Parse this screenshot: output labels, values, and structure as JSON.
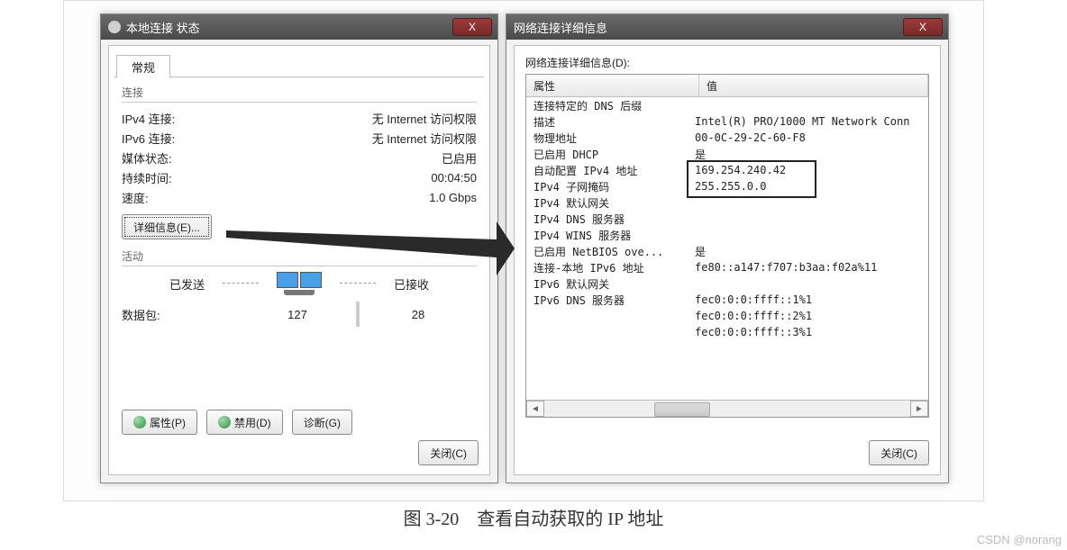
{
  "colors": {
    "window_bg": "#f2f2f2",
    "panel_bg": "#ffffff",
    "border": "#bcbcbc",
    "titlebar_top": "#6a6a6a",
    "titlebar_bot": "#4a4a4a",
    "xbtn_top": "#9a3a3a",
    "xbtn_bot": "#7a2a2a",
    "highlight_box": "#222222",
    "watermark": "#bbbbbb"
  },
  "left_window": {
    "title": "本地连接 状态",
    "tab": "常规",
    "connection_group_label": "连接",
    "rows": [
      {
        "k": "IPv4 连接:",
        "v": "无 Internet 访问权限"
      },
      {
        "k": "IPv6 连接:",
        "v": "无 Internet 访问权限"
      },
      {
        "k": "媒体状态:",
        "v": "已启用"
      },
      {
        "k": "持续时间:",
        "v": "00:04:50"
      },
      {
        "k": "速度:",
        "v": "1.0 Gbps"
      }
    ],
    "details_button": "详细信息(E)...",
    "activity_group_label": "活动",
    "sent_label": "已发送",
    "recv_label": "已接收",
    "packets_label": "数据包:",
    "packets_sent": "127",
    "packets_recv": "28",
    "btn_properties": "属性(P)",
    "btn_disable": "禁用(D)",
    "btn_diagnose": "诊断(G)",
    "btn_close": "关闭(C)"
  },
  "right_window": {
    "title": "网络连接详细信息",
    "list_label": "网络连接详细信息(D):",
    "col_prop": "属性",
    "col_val": "值",
    "rows": [
      {
        "p": "连接特定的 DNS 后缀",
        "v": ""
      },
      {
        "p": "描述",
        "v": "Intel(R) PRO/1000 MT Network Conn"
      },
      {
        "p": "物理地址",
        "v": "00-0C-29-2C-60-F8"
      },
      {
        "p": "已启用 DHCP",
        "v": "是"
      },
      {
        "p": "自动配置 IPv4 地址",
        "v": "169.254.240.42"
      },
      {
        "p": "IPv4 子网掩码",
        "v": "255.255.0.0"
      },
      {
        "p": "IPv4 默认网关",
        "v": ""
      },
      {
        "p": "IPv4 DNS 服务器",
        "v": ""
      },
      {
        "p": "IPv4 WINS 服务器",
        "v": ""
      },
      {
        "p": "已启用 NetBIOS ove...",
        "v": "是"
      },
      {
        "p": "连接-本地 IPv6 地址",
        "v": "fe80::a147:f707:b3aa:f02a%11"
      },
      {
        "p": "IPv6 默认网关",
        "v": ""
      },
      {
        "p": "IPv6 DNS 服务器",
        "v": "fec0:0:0:ffff::1%1"
      },
      {
        "p": "",
        "v": "fec0:0:0:ffff::2%1"
      },
      {
        "p": "",
        "v": "fec0:0:0:ffff::3%1"
      }
    ],
    "highlight_rows": {
      "start": 4,
      "end": 5
    },
    "btn_close": "关闭(C)"
  },
  "caption": "图 3-20　查看自动获取的 IP 地址",
  "watermark": "CSDN @norang"
}
